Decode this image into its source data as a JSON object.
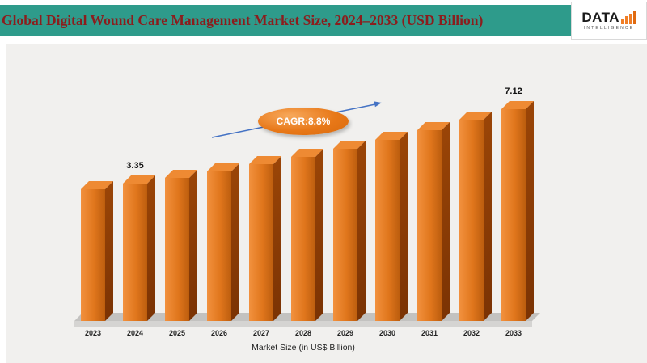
{
  "header": {
    "title": "Global Digital Wound Care Management Market Size, 2024–2033 (USD Billion)",
    "background_color": "#2E9B8B",
    "title_color": "#8B1D1D"
  },
  "logo": {
    "text": "DATA",
    "subtext": "INTELLIGENCE",
    "accent_color": "#F07E26"
  },
  "chart_data": {
    "type": "bar",
    "title": "Global Digital Wound Care Management Market Size, 2024–2033 (USD Billion)",
    "categories": [
      "2023",
      "2024",
      "2025",
      "2026",
      "2027",
      "2028",
      "2029",
      "2030",
      "2031",
      "2032",
      "2033"
    ],
    "values": [
      3.08,
      3.35,
      3.64,
      3.97,
      4.32,
      4.7,
      5.11,
      5.56,
      6.05,
      6.58,
      7.12
    ],
    "shown_value_labels": [
      {
        "category": "2024",
        "text": "3.35"
      },
      {
        "category": "2033",
        "text": "7.12"
      }
    ],
    "cagr_label": "CAGR:8.8%",
    "xlabel": "Market Size (in US$ Billion)",
    "ylabel": "",
    "legend": "none",
    "grid": false,
    "bar_front_color": "#E0761C",
    "bar_side_color": "#8A3B05",
    "bar_top_color": "#EE8A33",
    "floor_color": "#C8C7C5",
    "arrow_color": "#4472C4"
  }
}
